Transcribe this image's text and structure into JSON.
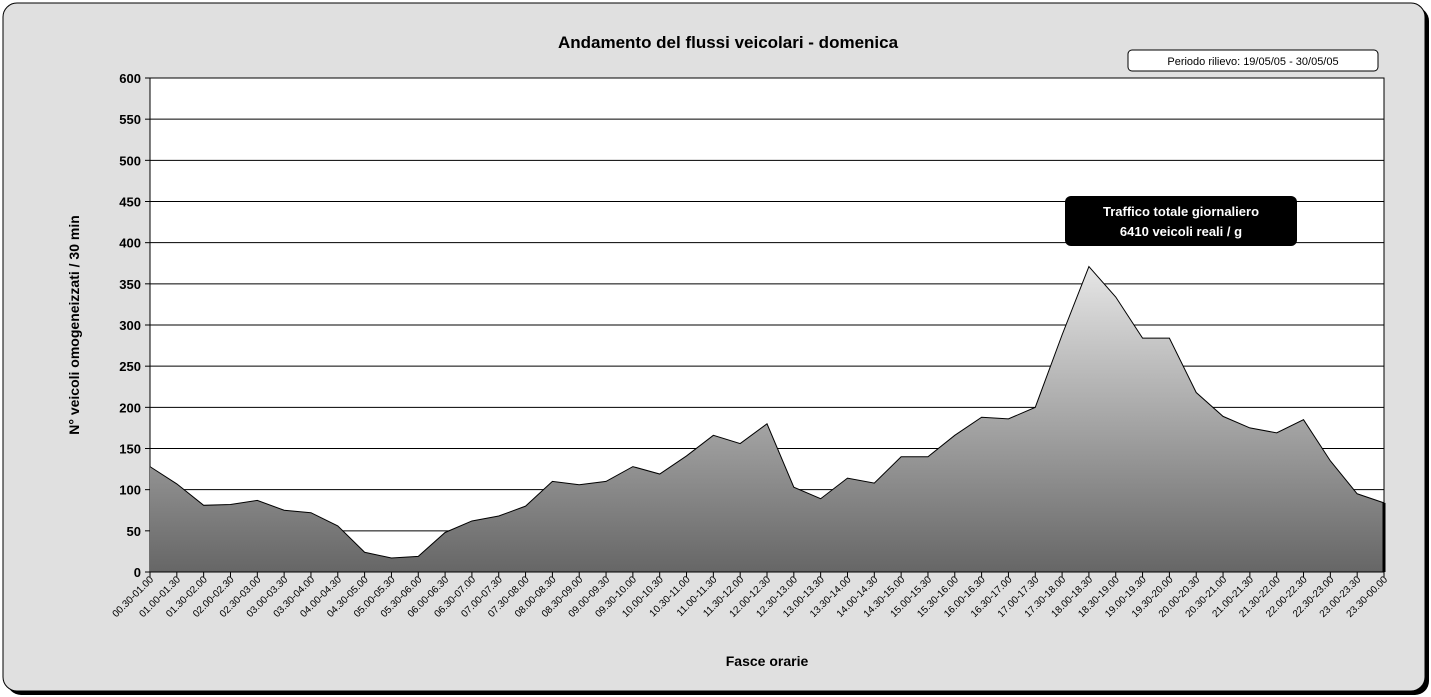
{
  "chart_data": {
    "type": "area",
    "title": "Andamento del flussi veicolari - domenica",
    "xlabel": "Fasce orarie",
    "ylabel": "N° veicoli omogeneizzati / 30 min",
    "ylim": [
      0,
      600
    ],
    "yticks": [
      0,
      50,
      100,
      150,
      200,
      250,
      300,
      350,
      400,
      450,
      500,
      550,
      600
    ],
    "grid": true,
    "categories": [
      "00.30-01.00",
      "01.00-01.30",
      "01.30-02.00",
      "02.00-02.30",
      "02.30-03.00",
      "03.00-03.30",
      "03.30-04.00",
      "04.00-04.30",
      "04.30-05.00",
      "05.00-05.30",
      "05.30-06.00",
      "06.00-06.30",
      "06.30-07.00",
      "07.00-07.30",
      "07.30-08.00",
      "08.00-08.30",
      "08.30-09.00",
      "09.00-09.30",
      "09.30-10.00",
      "10.00-10.30",
      "10.30-11.00",
      "11.00-11.30",
      "11.30-12.00",
      "12.00-12.30",
      "12.30-13.00",
      "13.00-13.30",
      "13.30-14.00",
      "14.00-14.30",
      "14.30-15.00",
      "15.00-15.30",
      "15.30-16.00",
      "16.00-16.30",
      "16.30-17.00",
      "17.00-17.30",
      "17.30-18.00",
      "18.00-18.30",
      "18.30-19.00",
      "19.00-19.30",
      "19.30-20.00",
      "20.00-20.30",
      "20.30-21.00",
      "21.00-21.30",
      "21.30-22.00",
      "22.00-22.30",
      "22.30-23.00",
      "23.00-23.30",
      "23.30-00.00"
    ],
    "values": [
      128,
      107,
      81,
      82,
      87,
      75,
      72,
      56,
      24,
      17,
      19,
      48,
      62,
      68,
      80,
      110,
      106,
      110,
      128,
      119,
      141,
      166,
      156,
      180,
      103,
      89,
      114,
      108,
      140,
      140,
      166,
      188,
      186,
      200,
      288,
      371,
      334,
      284,
      284,
      218,
      189,
      175,
      169,
      185,
      135,
      95,
      84
    ],
    "annotations": [
      {
        "id": "period",
        "text": "Periodo rilievo: 19/05/05 - 30/05/05"
      },
      {
        "id": "total",
        "lines": [
          "Traffico totale giornaliero",
          "6410 veicoli reali / g"
        ]
      }
    ],
    "colors": {
      "background": "#e0e0e0",
      "plot_background": "#ffffff",
      "area_top": "#e6e6e6",
      "area_bottom": "#666666",
      "line": "#000000"
    }
  }
}
